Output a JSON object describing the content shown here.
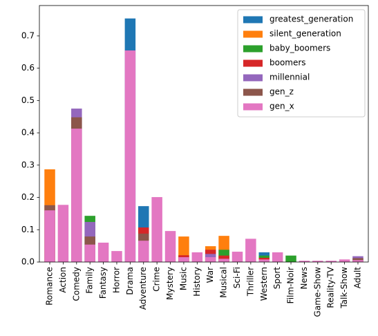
{
  "chart_data": {
    "type": "bar",
    "categories": [
      "Romance",
      "Action",
      "Comedy",
      "Family",
      "Fantasy",
      "Horror",
      "Drama",
      "Adventure",
      "Crime",
      "Mystery",
      "Music",
      "History",
      "War",
      "Musical",
      "Sci-Fi",
      "Thriller",
      "Western",
      "Sport",
      "Film-Noir",
      "News",
      "Game-Show",
      "Reality-TV",
      "Talk-Show",
      "Adult"
    ],
    "series": [
      {
        "name": "greatest_generation",
        "color": "#1f77b4",
        "values": [
          null,
          null,
          null,
          null,
          null,
          null,
          0.754,
          0.173,
          null,
          null,
          null,
          null,
          null,
          null,
          null,
          null,
          0.03,
          null,
          null,
          null,
          null,
          null,
          null,
          null
        ]
      },
      {
        "name": "silent_generation",
        "color": "#ff7f0e",
        "values": [
          0.287,
          null,
          null,
          null,
          null,
          null,
          null,
          null,
          null,
          null,
          0.079,
          null,
          0.049,
          0.081,
          null,
          null,
          null,
          null,
          null,
          null,
          null,
          null,
          null,
          null
        ]
      },
      {
        "name": "baby_boomers",
        "color": "#2ca02c",
        "values": [
          null,
          null,
          null,
          0.143,
          null,
          null,
          null,
          null,
          null,
          null,
          null,
          null,
          null,
          0.038,
          null,
          null,
          0.02,
          null,
          0.02,
          null,
          null,
          null,
          null,
          null
        ]
      },
      {
        "name": "boomers",
        "color": "#d62728",
        "values": [
          null,
          null,
          null,
          null,
          null,
          null,
          null,
          0.107,
          null,
          null,
          0.021,
          null,
          0.038,
          0.02,
          null,
          null,
          0.013,
          null,
          null,
          null,
          null,
          null,
          null,
          null
        ]
      },
      {
        "name": "millennial",
        "color": "#9467bd",
        "values": [
          null,
          null,
          0.475,
          0.124,
          null,
          null,
          null,
          null,
          null,
          null,
          null,
          null,
          0.025,
          null,
          null,
          null,
          null,
          null,
          null,
          null,
          null,
          null,
          null,
          0.018
        ]
      },
      {
        "name": "gen_z",
        "color": "#8c564b",
        "values": [
          0.176,
          null,
          0.448,
          0.079,
          null,
          null,
          null,
          0.088,
          null,
          null,
          null,
          null,
          null,
          null,
          null,
          null,
          null,
          null,
          null,
          null,
          null,
          null,
          null,
          0.012
        ]
      },
      {
        "name": "gen_x",
        "color": "#e377c2",
        "values": [
          0.16,
          0.177,
          0.413,
          0.054,
          0.06,
          0.034,
          0.655,
          0.066,
          0.201,
          0.096,
          0.015,
          0.03,
          0.015,
          0.01,
          0.032,
          0.072,
          0.008,
          0.03,
          null,
          0.004,
          0.004,
          0.004,
          0.008,
          0.006
        ]
      }
    ],
    "ylim": [
      0,
      0.794
    ],
    "yticks": [
      {
        "value": 0,
        "label": "0.0"
      },
      0.1,
      0.2,
      0.3,
      0.4,
      0.5,
      0.6,
      0.7
    ],
    "legend": "upper right"
  }
}
